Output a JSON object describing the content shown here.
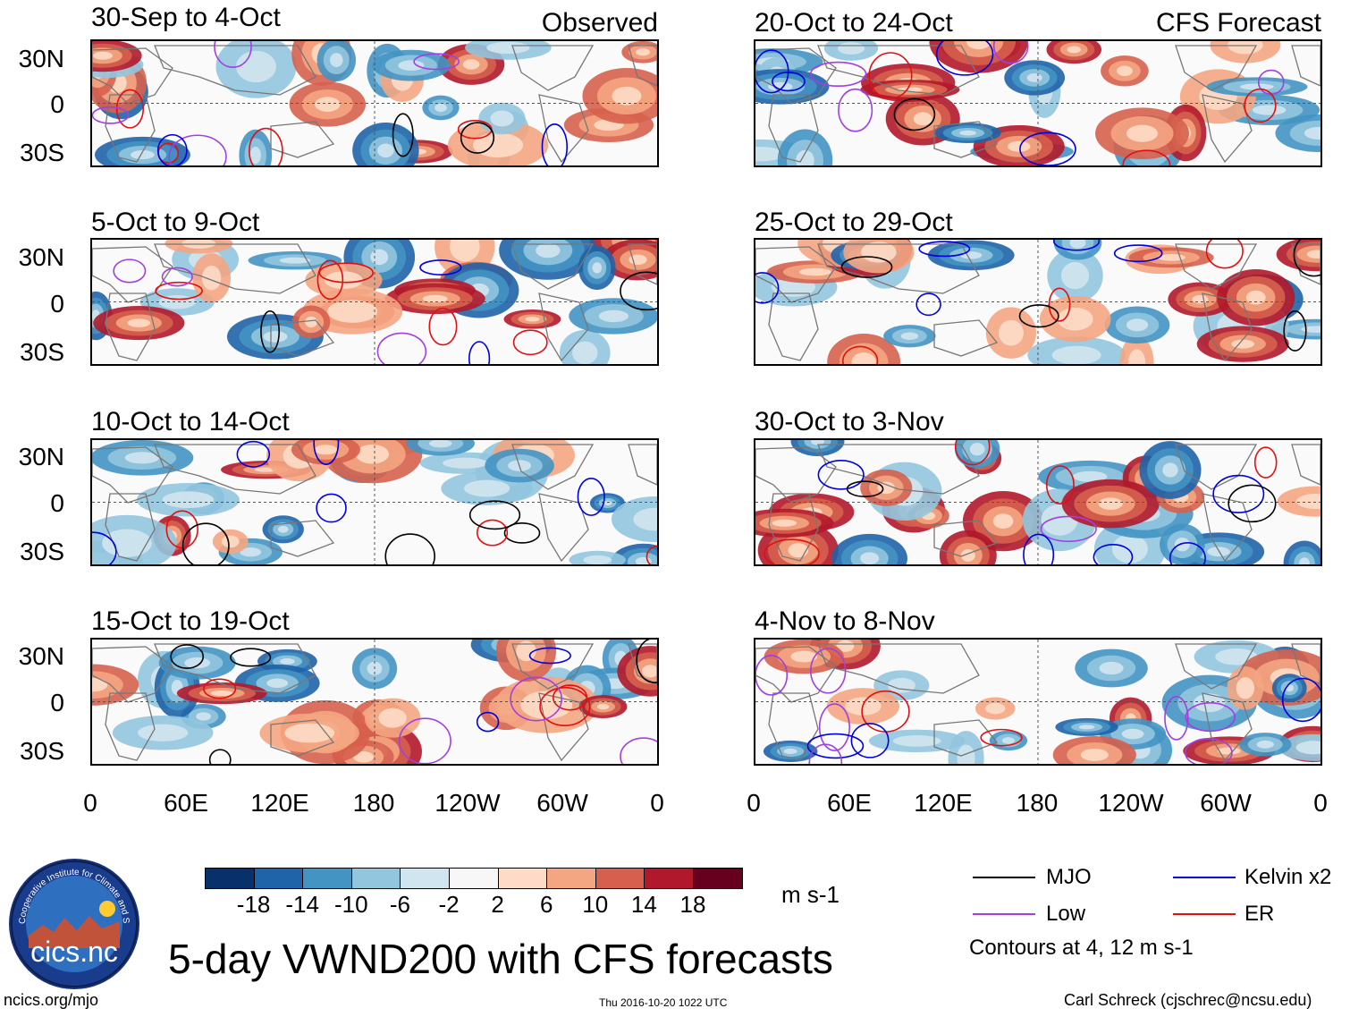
{
  "header": {
    "observed_tag": "Observed",
    "forecast_tag": "CFS Forecast"
  },
  "panels": {
    "observed": [
      {
        "title": "30-Sep to 4-Oct"
      },
      {
        "title": "5-Oct to 9-Oct"
      },
      {
        "title": "10-Oct to 14-Oct"
      },
      {
        "title": "15-Oct to 19-Oct"
      }
    ],
    "forecast": [
      {
        "title": "20-Oct to 24-Oct"
      },
      {
        "title": "25-Oct to 29-Oct"
      },
      {
        "title": "30-Oct to 3-Nov"
      },
      {
        "title": "4-Nov to 8-Nov"
      }
    ]
  },
  "axes": {
    "lat_labels": [
      "30N",
      "0",
      "30S"
    ],
    "lon_labels": [
      "0",
      "60E",
      "120E",
      "180",
      "120W",
      "60W",
      "0"
    ]
  },
  "colorbar": {
    "colors": [
      "#08306b",
      "#1f63a8",
      "#4393c3",
      "#92c5de",
      "#d1e5f0",
      "#f7f7f7",
      "#fddbc7",
      "#f4a582",
      "#d6604d",
      "#b2182b",
      "#67001f"
    ],
    "labels": [
      "-18",
      "-14",
      "-10",
      "-6",
      "-2",
      "2",
      "6",
      "10",
      "14",
      "18"
    ],
    "units": "m s-1"
  },
  "legend": {
    "items": [
      {
        "label": "MJO",
        "color": "#000000"
      },
      {
        "label": "Kelvin x2",
        "color": "#0000dd"
      },
      {
        "label": "Low",
        "color": "#a040e0"
      },
      {
        "label": "ER",
        "color": "#e01010"
      }
    ],
    "contours_note": "Contours at 4, 12 m s-1"
  },
  "main_title": "5-day VWND200 with CFS forecasts",
  "logo": {
    "ring_text": "Cooperative Institute for Climate and Satellites",
    "label": "cics.nc"
  },
  "footer": {
    "url": "ncics.org/mjo",
    "timestamp": "Thu 2016-10-20 1022 UTC",
    "author": "Carl Schreck (cjschrec@ncsu.edu)"
  }
}
